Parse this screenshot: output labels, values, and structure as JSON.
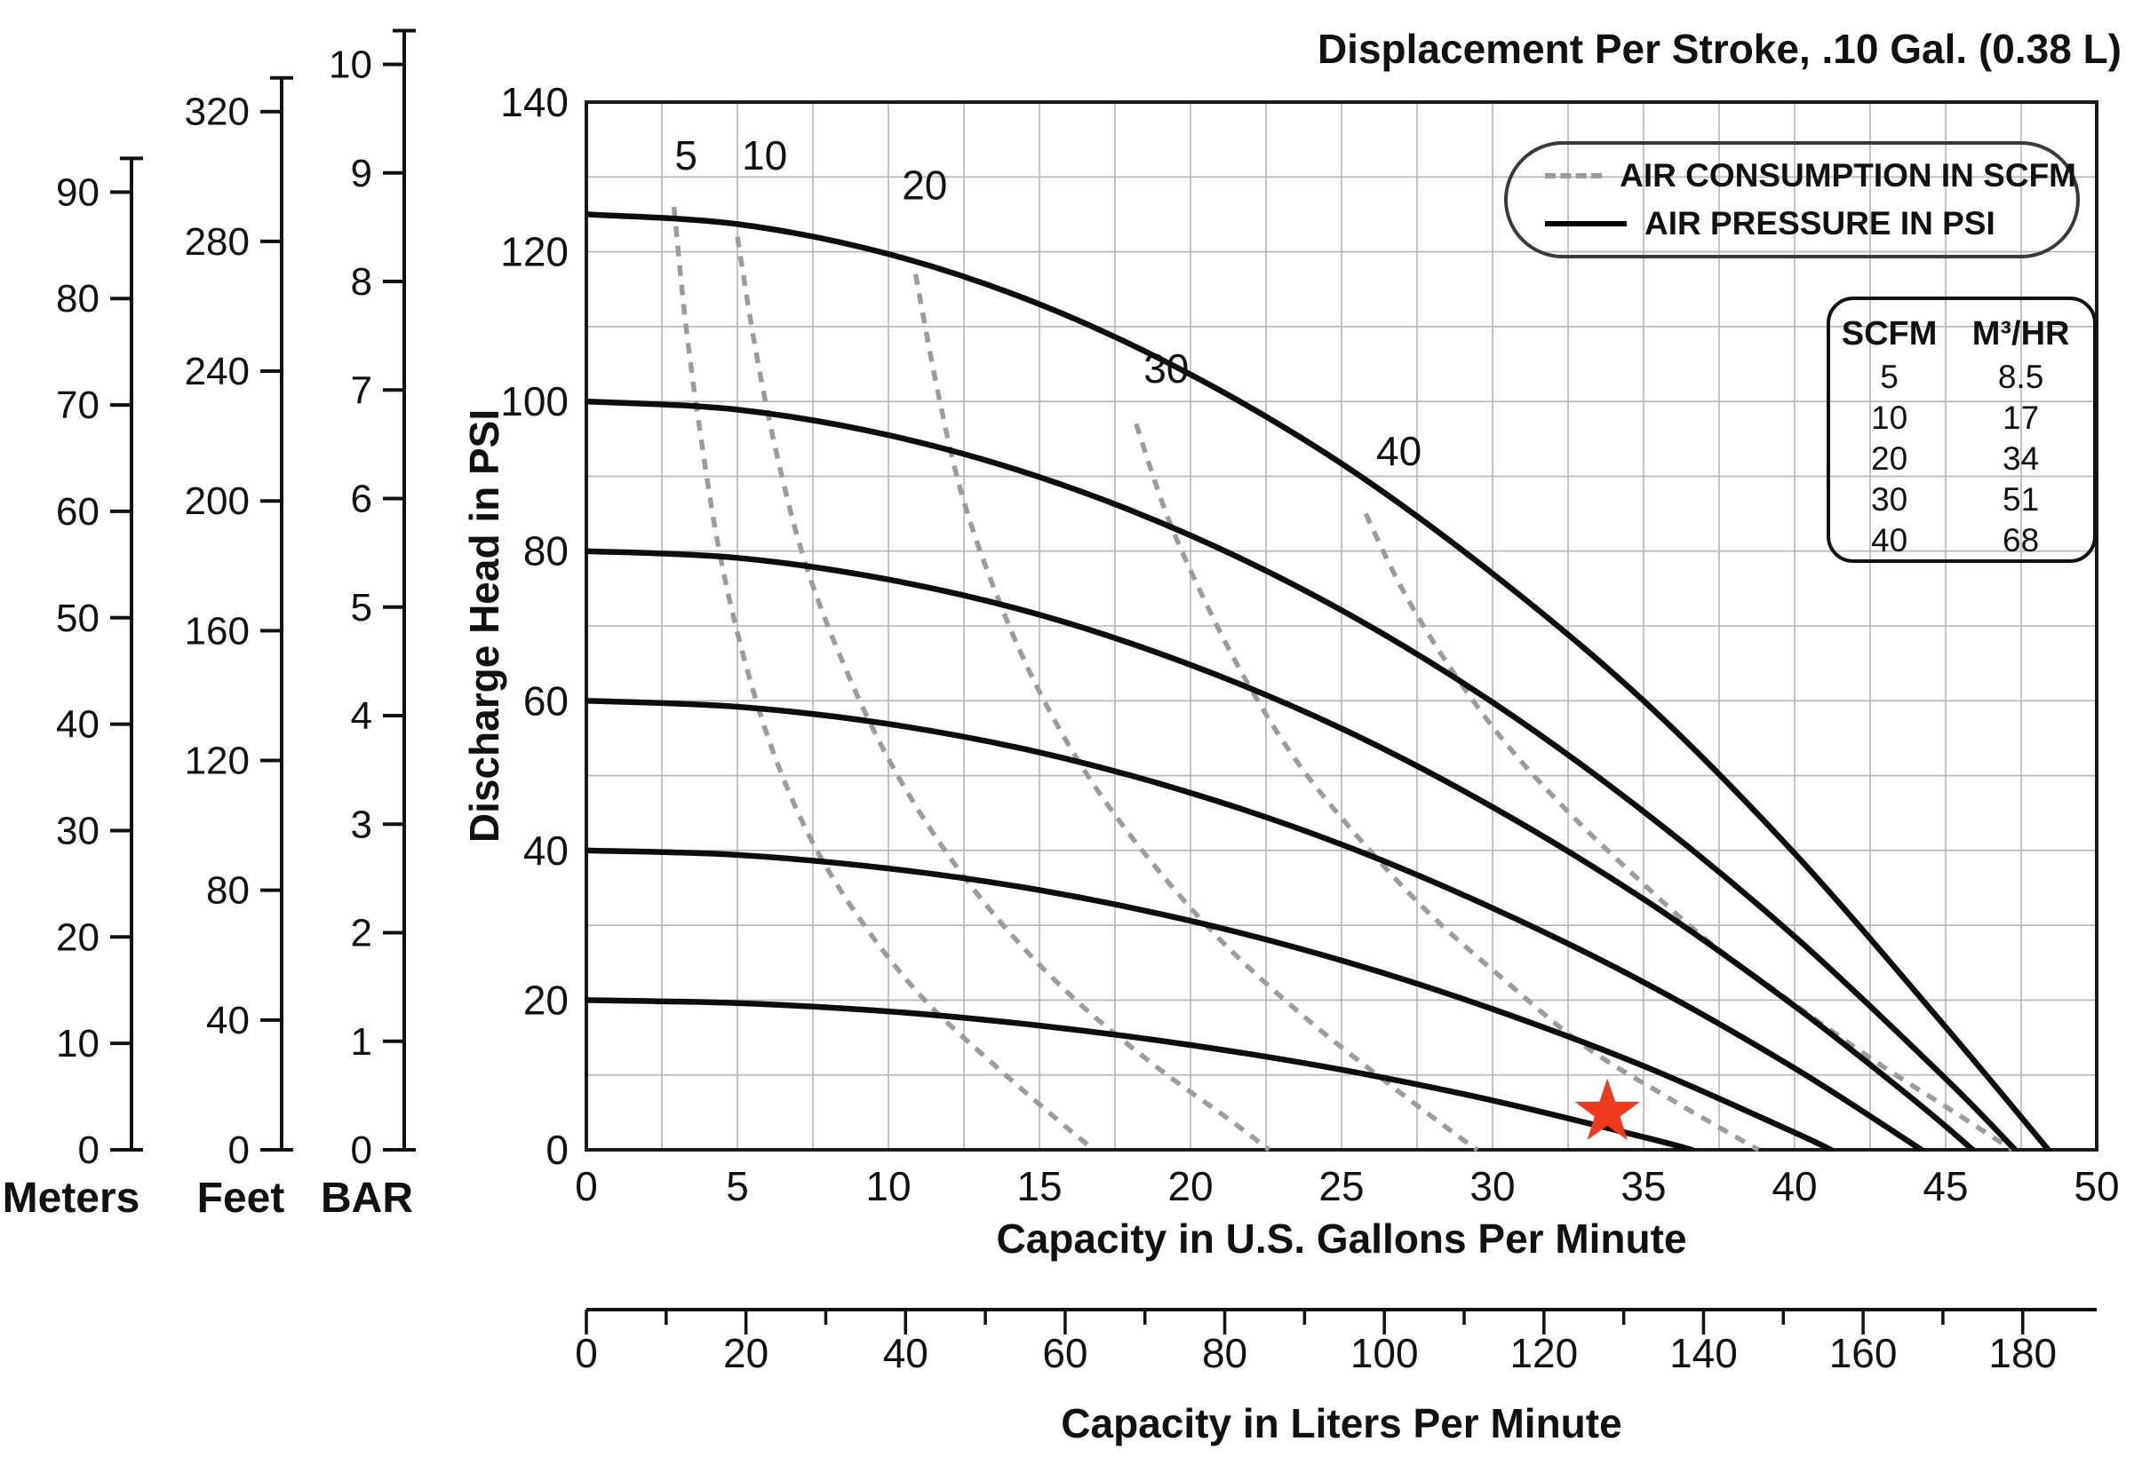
{
  "title": "Displacement Per Stroke, .10 Gal. (0.38 L)",
  "chart_data": {
    "type": "line",
    "title": "Displacement Per Stroke, .10 Gal. (0.38 L)",
    "xlabel": "Capacity in U.S. Gallons Per Minute",
    "ylabel": "Discharge Head in PSI",
    "x2label": "Capacity in Liters Per Minute",
    "xlim": [
      0,
      50
    ],
    "ylim": [
      0,
      140
    ],
    "x_label_step": 5,
    "x_grid_step": 2.5,
    "y_label_step": 20,
    "y_grid_step": 10,
    "grid": true,
    "legend": [
      {
        "label": "AIR CONSUMPTION IN SCFM",
        "style": "dashed",
        "color": "#9a9a9a"
      },
      {
        "label": "AIR PRESSURE IN PSI",
        "style": "solid",
        "color": "#000000"
      }
    ],
    "conversion_table": {
      "col1_header": "SCFM",
      "col2_header": "M³/HR",
      "rows": [
        [
          "5",
          "8.5"
        ],
        [
          "10",
          "17"
        ],
        [
          "20",
          "34"
        ],
        [
          "30",
          "51"
        ],
        [
          "40",
          "68"
        ]
      ]
    },
    "left_scales": [
      {
        "label": "Meters",
        "ticks": [
          0,
          10,
          20,
          30,
          40,
          50,
          60,
          70,
          80,
          90
        ],
        "psi_per_unit": 1.4219
      },
      {
        "label": "Feet",
        "ticks": [
          0,
          40,
          80,
          120,
          160,
          200,
          240,
          280,
          320
        ],
        "psi_per_unit": 0.43353
      },
      {
        "label": "BAR",
        "ticks": [
          0,
          1,
          2,
          3,
          4,
          5,
          6,
          7,
          8,
          9,
          10
        ],
        "psi_per_unit": 14.5038
      }
    ],
    "liters_axis": {
      "tick_step": 10,
      "label_step": 20,
      "max_label": 180,
      "liters_per_gallon": 3.7854
    },
    "pressure_curves_psi": [
      {
        "start_psi": 125,
        "points": [
          [
            0,
            125
          ],
          [
            5,
            123.7
          ],
          [
            10,
            119.7
          ],
          [
            15,
            113
          ],
          [
            20,
            103.6
          ],
          [
            25,
            91.7
          ],
          [
            30,
            77
          ],
          [
            35,
            60
          ],
          [
            40,
            39.6
          ],
          [
            45,
            16.4
          ],
          [
            48.4,
            0
          ]
        ]
      },
      {
        "start_psi": 100,
        "points": [
          [
            0,
            100
          ],
          [
            5,
            98.9
          ],
          [
            10,
            95.5
          ],
          [
            15,
            89.9
          ],
          [
            20,
            82.1
          ],
          [
            25,
            72.1
          ],
          [
            30,
            59.8
          ],
          [
            35,
            45.2
          ],
          [
            40,
            28.5
          ],
          [
            45,
            9.5
          ],
          [
            47.3,
            0
          ]
        ]
      },
      {
        "start_psi": 80,
        "points": [
          [
            0,
            80
          ],
          [
            5,
            79.1
          ],
          [
            10,
            76.2
          ],
          [
            15,
            71.5
          ],
          [
            20,
            64.8
          ],
          [
            25,
            56.3
          ],
          [
            30,
            45.8
          ],
          [
            35,
            33.5
          ],
          [
            40,
            19.2
          ],
          [
            44,
            6.5
          ],
          [
            45.9,
            0
          ]
        ]
      },
      {
        "start_psi": 60,
        "points": [
          [
            0,
            60
          ],
          [
            5,
            59.2
          ],
          [
            10,
            56.9
          ],
          [
            15,
            53.1
          ],
          [
            20,
            47.7
          ],
          [
            25,
            40.8
          ],
          [
            30,
            32.3
          ],
          [
            35,
            22.4
          ],
          [
            40,
            10.9
          ],
          [
            44.2,
            0
          ]
        ]
      },
      {
        "start_psi": 40,
        "points": [
          [
            0,
            40
          ],
          [
            5,
            39.4
          ],
          [
            10,
            37.6
          ],
          [
            15,
            34.7
          ],
          [
            20,
            30.6
          ],
          [
            25,
            25.3
          ],
          [
            30,
            18.8
          ],
          [
            35,
            11.2
          ],
          [
            40,
            2.3
          ],
          [
            41.2,
            0
          ]
        ]
      },
      {
        "start_psi": 20,
        "points": [
          [
            0,
            20
          ],
          [
            5,
            19.6
          ],
          [
            10,
            18.5
          ],
          [
            15,
            16.6
          ],
          [
            20,
            14
          ],
          [
            25,
            10.7
          ],
          [
            30,
            6.6
          ],
          [
            35,
            1.7
          ],
          [
            36.6,
            0
          ]
        ]
      }
    ],
    "air_curves_scfm": [
      {
        "label": "5",
        "label_pos": [
          3.3,
          131
        ],
        "points": [
          [
            2.9,
            126
          ],
          [
            3.3,
            110
          ],
          [
            3.8,
            95
          ],
          [
            4.4,
            80
          ],
          [
            5.2,
            66
          ],
          [
            6.2,
            53
          ],
          [
            7.5,
            41
          ],
          [
            9.2,
            30
          ],
          [
            11.2,
            20
          ],
          [
            13.6,
            11
          ],
          [
            15.6,
            4
          ],
          [
            16.8,
            0
          ]
        ]
      },
      {
        "label": "10",
        "label_pos": [
          5.9,
          131
        ],
        "points": [
          [
            5,
            122
          ],
          [
            5.6,
            107
          ],
          [
            6.3,
            93
          ],
          [
            7.2,
            79
          ],
          [
            8.4,
            66
          ],
          [
            9.9,
            53
          ],
          [
            11.7,
            41
          ],
          [
            13.8,
            30
          ],
          [
            16.2,
            20
          ],
          [
            18.9,
            11
          ],
          [
            21.3,
            4
          ],
          [
            22.6,
            0
          ]
        ]
      },
      {
        "label": "20",
        "label_pos": [
          11.2,
          127
        ],
        "points": [
          [
            10.9,
            117
          ],
          [
            11.6,
            102
          ],
          [
            12.4,
            88
          ],
          [
            13.5,
            75
          ],
          [
            14.9,
            62
          ],
          [
            16.6,
            50
          ],
          [
            18.6,
            39
          ],
          [
            21,
            28
          ],
          [
            23.7,
            18
          ],
          [
            26.5,
            9
          ],
          [
            28.8,
            2
          ],
          [
            29.5,
            0
          ]
        ]
      },
      {
        "label": "30",
        "label_pos": [
          19.2,
          102.5
        ],
        "points": [
          [
            18.2,
            97
          ],
          [
            19.2,
            85
          ],
          [
            20.4,
            74
          ],
          [
            21.8,
            63
          ],
          [
            23.5,
            52
          ],
          [
            25.5,
            42
          ],
          [
            27.8,
            32
          ],
          [
            30.3,
            23
          ],
          [
            33,
            14
          ],
          [
            35.8,
            7
          ],
          [
            38.8,
            0
          ]
        ]
      },
      {
        "label": "40",
        "label_pos": [
          26.9,
          91.5
        ],
        "points": [
          [
            25.8,
            85
          ],
          [
            27,
            75
          ],
          [
            28.5,
            65
          ],
          [
            30.3,
            55
          ],
          [
            32.3,
            46
          ],
          [
            34.6,
            37
          ],
          [
            37.1,
            28
          ],
          [
            39.8,
            20
          ],
          [
            42.6,
            12
          ],
          [
            45.3,
            5
          ],
          [
            47.2,
            0
          ]
        ]
      }
    ],
    "marker": {
      "shape": "star",
      "x": 33.8,
      "y": 5,
      "color": "#ee3b1f"
    }
  }
}
